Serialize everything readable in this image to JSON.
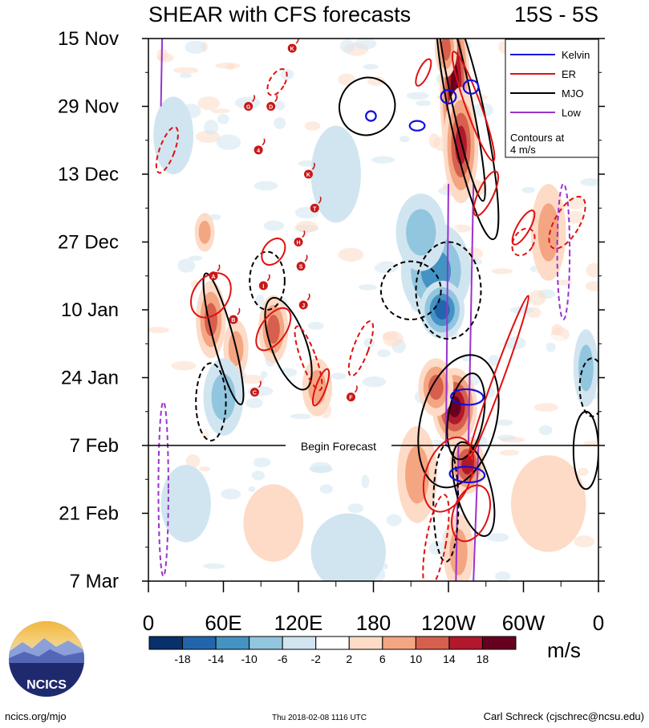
{
  "chart_data": {
    "type": "heatmap",
    "title": "SHEAR with CFS forecasts",
    "region": "15S - 5S",
    "x_ticks": [
      {
        "lon": 0,
        "label": "0"
      },
      {
        "lon": 60,
        "label": "60E"
      },
      {
        "lon": 120,
        "label": "120E"
      },
      {
        "lon": 180,
        "label": "180"
      },
      {
        "lon": 240,
        "label": "120W"
      },
      {
        "lon": 300,
        "label": "60W"
      },
      {
        "lon": 360,
        "label": "0"
      }
    ],
    "xlim": [
      0,
      360
    ],
    "y_ticks": [
      {
        "day": 0,
        "label": "15 Nov"
      },
      {
        "day": 14,
        "label": "29 Nov"
      },
      {
        "day": 28,
        "label": "13 Dec"
      },
      {
        "day": 42,
        "label": "27 Dec"
      },
      {
        "day": 56,
        "label": "10 Jan"
      },
      {
        "day": 70,
        "label": "24 Jan"
      },
      {
        "day": 84,
        "label": "7 Feb"
      },
      {
        "day": 98,
        "label": "21 Feb"
      },
      {
        "day": 112,
        "label": "7 Mar"
      }
    ],
    "ylim": [
      0,
      112
    ],
    "forecast_start_day": 84,
    "forecast_label": "Begin Forecast",
    "colorbar": {
      "units": "m/s",
      "levels": [
        -18,
        -14,
        -10,
        -6,
        -2,
        2,
        6,
        10,
        14,
        18
      ],
      "labels": [
        "-18",
        "-14",
        "-10",
        "-6",
        "-2",
        "2",
        "6",
        "10",
        "14",
        "18"
      ],
      "colors": [
        "#08306b",
        "#2166ac",
        "#4393c3",
        "#92c5de",
        "#d1e5f0",
        "#ffffff",
        "#fddbc7",
        "#f4a582",
        "#d6604d",
        "#b2182b",
        "#67001f"
      ]
    },
    "legend": {
      "placement": "top-right",
      "entries": [
        {
          "label": "Kelvin",
          "color": "#1010e0",
          "style": "solid"
        },
        {
          "label": "ER",
          "color": "#e01010",
          "style": "solid"
        },
        {
          "label": "MJO",
          "color": "#000000",
          "style": "solid"
        },
        {
          "label": "Low",
          "color": "#9933cc",
          "style": "solid"
        }
      ],
      "note_line1": "Contours at",
      "note_line2": "4 m/s"
    },
    "blobs": [
      {
        "lon": 245,
        "day": 10,
        "rlon": 12,
        "rday": 18,
        "v": 20
      },
      {
        "lon": 250,
        "day": 22,
        "rlon": 14,
        "rday": 12,
        "v": 14
      },
      {
        "lon": 238,
        "day": 2,
        "rlon": 9,
        "rday": 6,
        "v": 12
      },
      {
        "lon": 230,
        "day": 48,
        "rlon": 28,
        "rday": 10,
        "v": -12
      },
      {
        "lon": 235,
        "day": 56,
        "rlon": 18,
        "rday": 6,
        "v": -16
      },
      {
        "lon": 218,
        "day": 40,
        "rlon": 20,
        "rday": 8,
        "v": -9
      },
      {
        "lon": 245,
        "day": 76,
        "rlon": 18,
        "rday": 8,
        "v": 20
      },
      {
        "lon": 230,
        "day": 72,
        "rlon": 14,
        "rday": 6,
        "v": 12
      },
      {
        "lon": 255,
        "day": 88,
        "rlon": 14,
        "rday": 6,
        "v": 17
      },
      {
        "lon": 215,
        "day": 90,
        "rlon": 16,
        "rday": 10,
        "v": 9
      },
      {
        "lon": 248,
        "day": 106,
        "rlon": 12,
        "rday": 8,
        "v": 9
      },
      {
        "lon": 50,
        "day": 58,
        "rlon": 12,
        "rday": 8,
        "v": 12
      },
      {
        "lon": 100,
        "day": 60,
        "rlon": 12,
        "rday": 7,
        "v": 11
      },
      {
        "lon": 70,
        "day": 64,
        "rlon": 10,
        "rday": 6,
        "v": 9
      },
      {
        "lon": 135,
        "day": 72,
        "rlon": 12,
        "rday": 6,
        "v": 7
      },
      {
        "lon": 45,
        "day": 40,
        "rlon": 8,
        "rday": 4,
        "v": 8
      },
      {
        "lon": 60,
        "day": 74,
        "rlon": 16,
        "rday": 8,
        "v": -7
      },
      {
        "lon": 20,
        "day": 20,
        "rlon": 16,
        "rday": 8,
        "v": -5
      },
      {
        "lon": 150,
        "day": 28,
        "rlon": 20,
        "rday": 10,
        "v": -5
      },
      {
        "lon": 320,
        "day": 40,
        "rlon": 14,
        "rday": 10,
        "v": 6
      },
      {
        "lon": 350,
        "day": 68,
        "rlon": 10,
        "rday": 8,
        "v": -7
      },
      {
        "lon": 100,
        "day": 100,
        "rlon": 24,
        "rday": 8,
        "v": 4
      },
      {
        "lon": 160,
        "day": 106,
        "rlon": 30,
        "rday": 8,
        "v": -4
      },
      {
        "lon": 320,
        "day": 96,
        "rlon": 30,
        "rday": 10,
        "v": 3
      },
      {
        "lon": 30,
        "day": 96,
        "rlon": 20,
        "rday": 8,
        "v": -4
      }
    ],
    "contours": [
      {
        "wave": "MJO",
        "lon": 250,
        "day": 12,
        "rlon": 8,
        "rday": 22,
        "rot": -12,
        "dash": false
      },
      {
        "wave": "MJO",
        "lon": 255,
        "day": 16,
        "rlon": 14,
        "rday": 26,
        "rot": -12,
        "dash": false
      },
      {
        "wave": "MJO",
        "lon": 175,
        "day": 14,
        "rlon": 22,
        "rday": 6,
        "rot": 25,
        "dash": false
      },
      {
        "wave": "MJO",
        "lon": 60,
        "day": 62,
        "rlon": 8,
        "rday": 14,
        "rot": -15,
        "dash": false
      },
      {
        "wave": "MJO",
        "lon": 112,
        "day": 63,
        "rlon": 14,
        "rday": 10,
        "rot": -20,
        "dash": false
      },
      {
        "wave": "MJO",
        "lon": 248,
        "day": 79,
        "rlon": 30,
        "rday": 14,
        "rot": 15,
        "dash": false
      },
      {
        "wave": "MJO",
        "lon": 254,
        "day": 78,
        "rlon": 14,
        "rday": 9,
        "rot": 10,
        "dash": false
      },
      {
        "wave": "MJO",
        "lon": 260,
        "day": 93,
        "rlon": 14,
        "rday": 10,
        "rot": -15,
        "dash": false
      },
      {
        "wave": "MJO",
        "lon": 350,
        "day": 85,
        "rlon": 10,
        "rday": 8,
        "rot": 0,
        "dash": false
      },
      {
        "wave": "MJO",
        "lon": 210,
        "day": 52,
        "rlon": 24,
        "rday": 6,
        "rot": 0,
        "dash": true
      },
      {
        "wave": "MJO",
        "lon": 240,
        "day": 52,
        "rlon": 26,
        "rday": 10,
        "rot": 0,
        "dash": true
      },
      {
        "wave": "MJO",
        "lon": 95,
        "day": 50,
        "rlon": 14,
        "rday": 6,
        "rot": 0,
        "dash": true
      },
      {
        "wave": "MJO",
        "lon": 50,
        "day": 75,
        "rlon": 12,
        "rday": 8,
        "rot": 0,
        "dash": true
      },
      {
        "wave": "MJO",
        "lon": 238,
        "day": 96,
        "rlon": 10,
        "rday": 12,
        "rot": 0,
        "dash": true
      },
      {
        "wave": "MJO",
        "lon": 355,
        "day": 72,
        "rlon": 10,
        "rday": 6,
        "rot": 0,
        "dash": true
      },
      {
        "wave": "ER",
        "lon": 260,
        "day": 14,
        "rlon": 6,
        "rday": 12,
        "rot": -20,
        "dash": false
      },
      {
        "wave": "ER",
        "lon": 270,
        "day": 32,
        "rlon": 6,
        "rday": 5,
        "rot": 25,
        "dash": false
      },
      {
        "wave": "ER",
        "lon": 300,
        "day": 39,
        "rlon": 5,
        "rday": 4,
        "rot": 30,
        "dash": false
      },
      {
        "wave": "ER",
        "lon": 220,
        "day": 7,
        "rlon": 4,
        "rday": 3,
        "rot": 25,
        "dash": false
      },
      {
        "wave": "ER",
        "lon": 50,
        "day": 53,
        "rlon": 14,
        "rday": 5,
        "rot": 35,
        "dash": false
      },
      {
        "wave": "ER",
        "lon": 100,
        "day": 60,
        "rlon": 10,
        "rday": 5,
        "rot": 35,
        "dash": false
      },
      {
        "wave": "ER",
        "lon": 100,
        "day": 44,
        "rlon": 8,
        "rday": 3,
        "rot": 35,
        "dash": false
      },
      {
        "wave": "ER",
        "lon": 138,
        "day": 72,
        "rlon": 4,
        "rday": 4,
        "rot": 20,
        "dash": false
      },
      {
        "wave": "ER",
        "lon": 240,
        "day": 90,
        "rlon": 18,
        "rday": 8,
        "rot": 20,
        "dash": false
      },
      {
        "wave": "ER",
        "lon": 280,
        "day": 70,
        "rlon": 4,
        "rday": 18,
        "rot": 20,
        "dash": false
      },
      {
        "wave": "ER",
        "lon": 258,
        "day": 98,
        "rlon": 14,
        "rday": 6,
        "rot": 20,
        "dash": false
      },
      {
        "wave": "ER",
        "lon": 300,
        "day": 42,
        "rlon": 8,
        "rday": 3,
        "rot": 30,
        "dash": true
      },
      {
        "wave": "ER",
        "lon": 128,
        "day": 66,
        "rlon": 6,
        "rday": 7,
        "rot": -20,
        "dash": true
      },
      {
        "wave": "ER",
        "lon": 170,
        "day": 64,
        "rlon": 6,
        "rday": 6,
        "rot": 20,
        "dash": true
      },
      {
        "wave": "ER",
        "lon": 230,
        "day": 104,
        "rlon": 8,
        "rday": 10,
        "rot": 10,
        "dash": true
      },
      {
        "wave": "ER",
        "lon": 335,
        "day": 38,
        "rlon": 10,
        "rday": 6,
        "rot": 30,
        "dash": true
      },
      {
        "wave": "ER",
        "lon": 15,
        "day": 23,
        "rlon": 6,
        "rday": 5,
        "rot": 20,
        "dash": true
      },
      {
        "wave": "ER",
        "lon": 103,
        "day": 9,
        "rlon": 6,
        "rday": 3,
        "rot": 30,
        "dash": true
      },
      {
        "wave": "Low",
        "lon": 12,
        "day": 93,
        "rlon": 4,
        "rday": 18,
        "rot": 0,
        "dash": true
      },
      {
        "wave": "Low",
        "lon": 332,
        "day": 44,
        "rlon": 5,
        "rday": 14,
        "rot": 0,
        "dash": true
      },
      {
        "wave": "Kelvin",
        "lon": 255,
        "day": 74,
        "rlon": 13,
        "rday": 1.6,
        "rot": 2,
        "dash": false
      },
      {
        "wave": "Kelvin",
        "lon": 255,
        "day": 90,
        "rlon": 14,
        "rday": 1.6,
        "rot": 3,
        "dash": false
      },
      {
        "wave": "Kelvin",
        "lon": 240,
        "day": 12,
        "rlon": 6,
        "rday": 1.4,
        "rot": 2,
        "dash": false
      },
      {
        "wave": "Kelvin",
        "lon": 258,
        "day": 10,
        "rlon": 6,
        "rday": 1.4,
        "rot": 2,
        "dash": false
      },
      {
        "wave": "Kelvin",
        "lon": 178,
        "day": 16,
        "rlon": 4,
        "rday": 1,
        "rot": 0,
        "dash": false
      },
      {
        "wave": "Kelvin",
        "lon": 215,
        "day": 18,
        "rlon": 6,
        "rday": 1,
        "rot": 0,
        "dash": false
      }
    ],
    "low_lines": [
      {
        "lon": [
          248,
          246
        ],
        "day": [
          84,
          112
        ]
      },
      {
        "lon": [
          264,
          260
        ],
        "day": [
          84,
          112
        ]
      },
      {
        "lon": [
          240,
          238
        ],
        "day": [
          30,
          84
        ]
      },
      {
        "lon": [
          260,
          256
        ],
        "day": [
          30,
          84
        ]
      },
      {
        "lon": [
          11,
          10
        ],
        "day": [
          0,
          14
        ]
      }
    ],
    "storms": [
      {
        "lon": 115,
        "day": 2,
        "label": "K"
      },
      {
        "lon": 80,
        "day": 14,
        "label": "G"
      },
      {
        "lon": 98,
        "day": 14,
        "label": "D"
      },
      {
        "lon": 88,
        "day": 23,
        "label": "4"
      },
      {
        "lon": 128,
        "day": 28,
        "label": "K"
      },
      {
        "lon": 133,
        "day": 35,
        "label": "T"
      },
      {
        "lon": 120,
        "day": 42,
        "label": "H"
      },
      {
        "lon": 122,
        "day": 47,
        "label": "S"
      },
      {
        "lon": 52,
        "day": 49,
        "label": "A"
      },
      {
        "lon": 92,
        "day": 51,
        "label": "I"
      },
      {
        "lon": 124,
        "day": 55,
        "label": "J"
      },
      {
        "lon": 68,
        "day": 58,
        "label": "B"
      },
      {
        "lon": 85,
        "day": 73,
        "label": "C"
      },
      {
        "lon": 162,
        "day": 74,
        "label": "F"
      }
    ]
  },
  "footer": {
    "logo_text": "NCICS",
    "url": "ncics.org/mjo",
    "timestamp": "Thu 2018-02-08 1116 UTC",
    "author": "Carl Schreck (cjschrec@ncsu.edu)"
  }
}
